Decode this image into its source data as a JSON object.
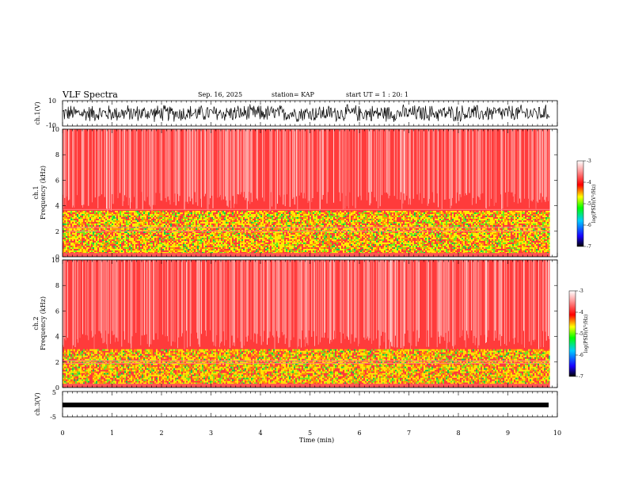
{
  "header": {
    "title": "VLF Spectra",
    "date": "Sep. 16, 2025",
    "station": "station= KAP",
    "start_ut": "start UT =  1 : 20: 1"
  },
  "colors": {
    "background": "#ffffff",
    "axis": "#000000",
    "spectrogram_base": "#ff3333",
    "colorbar": [
      "#000000",
      "#1a00ff",
      "#00ccff",
      "#00ff00",
      "#ffff00",
      "#ff0000",
      "#ff9999",
      "#ffffff"
    ]
  },
  "chart_data": [
    {
      "type": "line",
      "name": "ch1-waveform",
      "ylabel": "ch.1(V)",
      "yticks": [
        "10",
        "-10"
      ],
      "ylim": [
        -10,
        10
      ],
      "xlim": [
        0,
        10
      ],
      "description_values": {
        "typical_amplitude_v": [
          -5,
          5
        ]
      }
    },
    {
      "type": "heatmap",
      "name": "ch1-spectrogram",
      "ylabel": "Frequency (kHz)",
      "channel_label": "ch.1",
      "yticks": [
        "0",
        "2",
        "4",
        "6",
        "8",
        "10"
      ],
      "ylim": [
        0,
        10
      ],
      "xlim": [
        0,
        9.85
      ],
      "high_power_band_khz": [
        0.3,
        3.6
      ],
      "lines_khz": [
        2.0,
        2.3,
        3.7
      ],
      "colorbar": {
        "label": "log(PSD)(V²/Hz)",
        "ticks": [
          "-3",
          "-4",
          "-5",
          "-6",
          "-7"
        ],
        "range": [
          -7,
          -3
        ]
      }
    },
    {
      "type": "heatmap",
      "name": "ch2-spectrogram",
      "ylabel": "Frequency (kHz)",
      "channel_label": "ch.2",
      "yticks": [
        "0",
        "2",
        "4",
        "6",
        "8",
        "10"
      ],
      "ylim": [
        0,
        10
      ],
      "xlim": [
        0,
        9.85
      ],
      "high_power_band_khz": [
        0.3,
        3.0
      ],
      "lines_khz": [
        1.9,
        2.1
      ],
      "colorbar": {
        "label": "log(PSD)(V²/Hz)",
        "ticks": [
          "-3",
          "-4",
          "-5",
          "-6",
          "-7"
        ],
        "range": [
          -7,
          -3
        ]
      }
    },
    {
      "type": "line",
      "name": "ch3-waveform",
      "ylabel": "ch.3(V)",
      "yticks": [
        "5",
        "-5"
      ],
      "ylim": [
        -5,
        5
      ],
      "xlim": [
        0,
        10
      ],
      "description_values": {
        "typical_amplitude_v": [
          -0.4,
          0.4
        ]
      }
    }
  ],
  "xaxis": {
    "label": "Time (min)",
    "ticks": [
      "0",
      "1",
      "2",
      "3",
      "4",
      "5",
      "6",
      "7",
      "8",
      "9",
      "10"
    ]
  }
}
